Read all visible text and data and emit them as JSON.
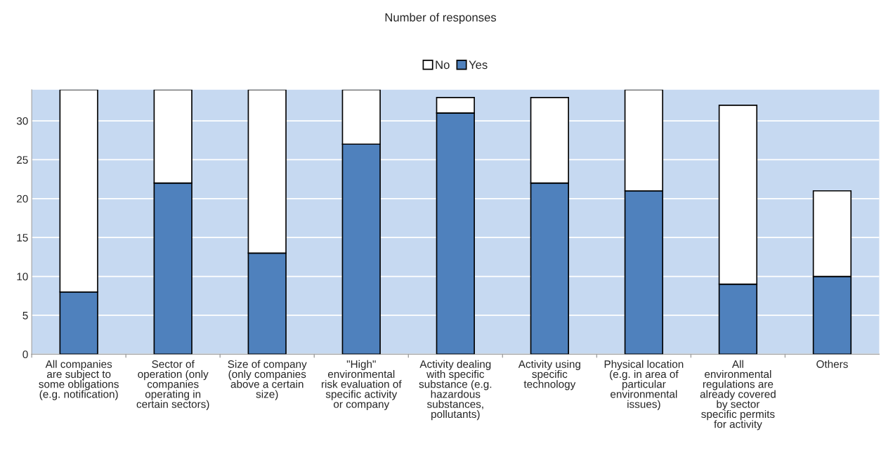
{
  "chart_data": {
    "type": "bar",
    "title": "Number of responses",
    "stacked": true,
    "categories": [
      "All companies\nare subject to\nsome obligations\n(e.g. notification)",
      "Sector of\noperation (only\ncompanies\noperating in\ncertain sectors)",
      "Size of company\n(only companies\nabove a certain\nsize)",
      "\"High\"\nenvironmental\nrisk evaluation of\nspecific activity\nor company",
      "Activity dealing\nwith specific\nsubstance (e.g.\nhazardous\nsubstances,\npollutants)",
      "Activity using\nspecific\ntechnology",
      "Physical location\n(e.g. in area of\nparticular\nenvironmental\nissues)",
      "All\nenvironmental\nregulations are\nalready covered\nby sector\nspecific permits\nfor activity",
      "Others"
    ],
    "series": [
      {
        "name": "Yes",
        "color": "#4f81bd",
        "values": [
          8,
          22,
          13,
          27,
          31,
          22,
          21,
          9,
          10
        ]
      },
      {
        "name": "No",
        "color": "#ffffff",
        "values": [
          26,
          12,
          21,
          7,
          2,
          11,
          13,
          23,
          11
        ]
      }
    ],
    "ylim": [
      0,
      34
    ],
    "yticks": [
      0,
      5,
      10,
      15,
      20,
      25,
      30
    ],
    "grid": "y",
    "legend": "top"
  }
}
